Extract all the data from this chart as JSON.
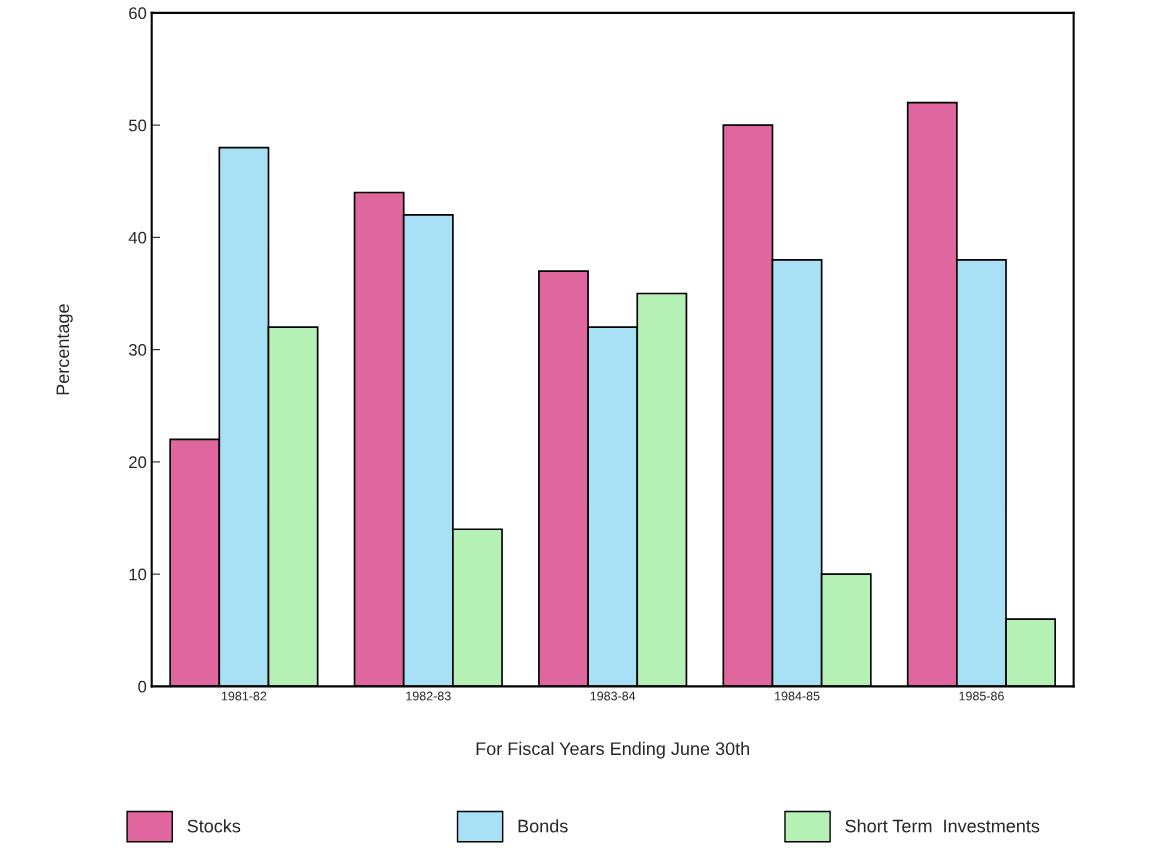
{
  "chart_data": {
    "type": "bar",
    "xlabel": "For Fiscal Years Ending June 30th",
    "ylabel": "Percentage",
    "categories": [
      "1981-82",
      "1982-83",
      "1983-84",
      "1984-85",
      "1985-86"
    ],
    "series": [
      {
        "name": "Stocks",
        "color": "#e0669e",
        "values": [
          22,
          44,
          37,
          50,
          52
        ]
      },
      {
        "name": "Bonds",
        "color": "#a8e0f5",
        "values": [
          48,
          42,
          32,
          38,
          38
        ]
      },
      {
        "name": "Short Term  Investments",
        "color": "#b5f0b5",
        "values": [
          32,
          14,
          35,
          10,
          6
        ]
      }
    ],
    "ylim": [
      0,
      60
    ],
    "yticks": [
      0,
      10,
      20,
      30,
      40,
      50,
      60
    ],
    "grid": false,
    "legend": "bottom"
  }
}
